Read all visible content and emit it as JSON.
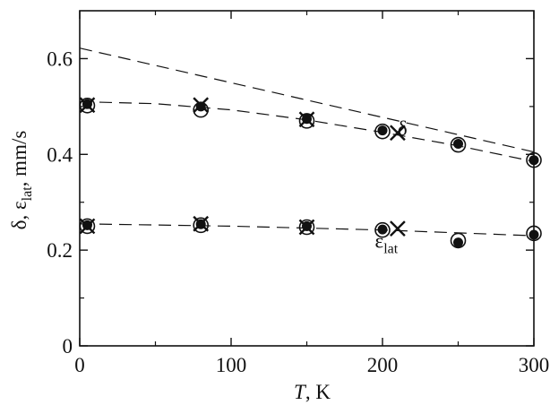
{
  "chart_data": {
    "type": "scatter",
    "title": "",
    "xlabel": {
      "italic_symbol": "T",
      "rest": ", K"
    },
    "ylabel": {
      "parts": [
        "δ, ε",
        "lat",
        ", mm/s"
      ]
    },
    "xlim": [
      0,
      300
    ],
    "ylim": [
      0,
      0.7
    ],
    "x_ticks": [
      0,
      100,
      200,
      300
    ],
    "x_tick_labels": [
      "0",
      "100",
      "200",
      "300"
    ],
    "x_minor_ticks": [
      50,
      150,
      250
    ],
    "y_ticks": [
      0,
      0.2,
      0.4,
      0.6
    ],
    "y_tick_labels": [
      "0",
      "0.2",
      "0.4",
      "0.6"
    ],
    "y_minor_ticks": [
      0.1,
      0.3,
      0.5
    ],
    "grid": false,
    "legend": "none",
    "annotations": [
      {
        "id": "delta",
        "text": "δ",
        "sub": "",
        "x": 210,
        "y": 0.44
      },
      {
        "id": "eps",
        "text": "ε",
        "sub": "lat",
        "x": 195,
        "y": 0.205
      }
    ],
    "fit_lines": [
      {
        "id": "delta-high-fit",
        "style": "dashed",
        "x": [
          0,
          300
        ],
        "y": [
          0.622,
          0.405
        ]
      },
      {
        "id": "delta-fit",
        "style": "dashed",
        "x": [
          0,
          50,
          100,
          150,
          200,
          250,
          300
        ],
        "y": [
          0.51,
          0.506,
          0.493,
          0.472,
          0.446,
          0.418,
          0.385
        ]
      },
      {
        "id": "eps-fit",
        "style": "dashed",
        "x": [
          0,
          100,
          200,
          300
        ],
        "y": [
          0.255,
          0.25,
          0.242,
          0.23
        ]
      }
    ],
    "series": [
      {
        "marker": "open-circle",
        "x": [
          5,
          80,
          150,
          200,
          250,
          300
        ],
        "y": [
          0.502,
          0.493,
          0.47,
          0.448,
          0.42,
          0.388
        ]
      },
      {
        "marker": "filled-dot",
        "x": [
          5,
          80,
          150,
          200,
          250,
          300
        ],
        "y": [
          0.505,
          0.5,
          0.474,
          0.45,
          0.422,
          0.388
        ]
      },
      {
        "marker": "cross",
        "x": [
          5,
          80,
          150,
          210
        ],
        "y": [
          0.503,
          0.503,
          0.473,
          0.445
        ]
      },
      {
        "marker": "open-circle",
        "x": [
          5,
          80,
          150,
          200,
          250,
          300
        ],
        "y": [
          0.25,
          0.252,
          0.248,
          0.242,
          0.22,
          0.235
        ]
      },
      {
        "marker": "filled-dot",
        "x": [
          5,
          80,
          150,
          200,
          250,
          300
        ],
        "y": [
          0.252,
          0.254,
          0.25,
          0.243,
          0.216,
          0.232
        ]
      },
      {
        "marker": "cross",
        "x": [
          5,
          80,
          150,
          210
        ],
        "y": [
          0.25,
          0.255,
          0.248,
          0.245
        ]
      }
    ]
  }
}
